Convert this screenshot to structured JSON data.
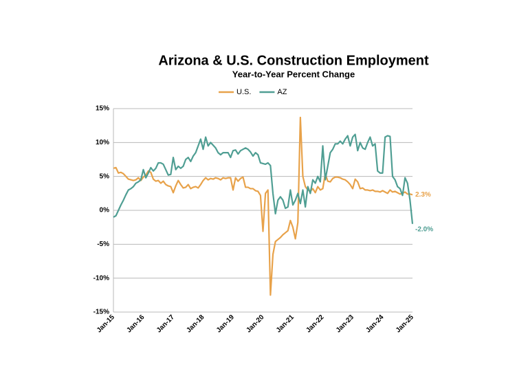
{
  "chart_data": {
    "type": "line",
    "title": "Arizona & U.S. Construction Employment",
    "subtitle": "Year-to-Year Percent Change",
    "categories": [
      "Jan-15",
      null,
      null,
      null,
      null,
      null,
      null,
      null,
      null,
      null,
      null,
      null,
      "Jan-16",
      null,
      null,
      null,
      null,
      null,
      null,
      null,
      null,
      null,
      null,
      null,
      "Jan-17",
      null,
      null,
      null,
      null,
      null,
      null,
      null,
      null,
      null,
      null,
      null,
      "Jan-18",
      null,
      null,
      null,
      null,
      null,
      null,
      null,
      null,
      null,
      null,
      null,
      "Jan-19",
      null,
      null,
      null,
      null,
      null,
      null,
      null,
      null,
      null,
      null,
      null,
      "Jan-20",
      null,
      null,
      null,
      null,
      null,
      null,
      null,
      null,
      null,
      null,
      null,
      "Jan-21",
      null,
      null,
      null,
      null,
      null,
      null,
      null,
      null,
      null,
      null,
      null,
      "Jan-22",
      null,
      null,
      null,
      null,
      null,
      null,
      null,
      null,
      null,
      null,
      null,
      "Jan-23",
      null,
      null,
      null,
      null,
      null,
      null,
      null,
      null,
      null,
      null,
      null,
      "Jan-24",
      null,
      null,
      null,
      null,
      null,
      null,
      null,
      null,
      null,
      null,
      null,
      "Jan-25"
    ],
    "series": [
      {
        "name": "U.S.",
        "color": "#e8a24a",
        "end_label": "2.3%",
        "values": [
          6.2,
          6.3,
          5.5,
          5.6,
          5.4,
          5.0,
          4.6,
          4.5,
          4.4,
          4.5,
          4.8,
          4.4,
          4.9,
          5.2,
          5.8,
          5.6,
          4.6,
          4.3,
          4.4,
          4.0,
          4.3,
          3.8,
          3.6,
          3.5,
          2.6,
          3.6,
          4.4,
          3.8,
          3.3,
          3.4,
          3.8,
          3.2,
          3.4,
          3.5,
          3.3,
          3.8,
          4.4,
          4.8,
          4.5,
          4.7,
          4.6,
          4.8,
          4.7,
          4.5,
          4.8,
          4.7,
          4.8,
          4.8,
          3.0,
          4.8,
          4.3,
          4.7,
          4.9,
          3.4,
          3.4,
          3.2,
          3.2,
          2.9,
          2.8,
          2.2,
          -3.1,
          2.5,
          3.0,
          -12.5,
          -6.5,
          -4.6,
          -4.3,
          -4.0,
          -3.6,
          -3.3,
          -3.0,
          -1.5,
          -2.5,
          -4.2,
          -1.8,
          13.7,
          5.0,
          3.5,
          3.0,
          2.8,
          3.2,
          2.6,
          3.5,
          3.0,
          3.2,
          5.4,
          4.3,
          4.2,
          4.7,
          4.9,
          4.9,
          4.8,
          4.6,
          4.5,
          4.2,
          3.8,
          3.2,
          4.6,
          4.2,
          3.2,
          3.3,
          3.0,
          3.0,
          2.9,
          3.0,
          2.8,
          2.8,
          2.7,
          2.9,
          2.7,
          2.5,
          3.0,
          2.7,
          2.8,
          2.6,
          2.4,
          2.5,
          2.7,
          2.4,
          2.4,
          2.3
        ]
      },
      {
        "name": "AZ",
        "color": "#4f9e93",
        "end_label": "-2.0%",
        "values": [
          -1.0,
          -0.8,
          0.0,
          0.8,
          1.5,
          2.3,
          3.0,
          3.2,
          3.5,
          4.0,
          4.2,
          4.5,
          6.0,
          4.8,
          5.5,
          6.3,
          5.8,
          6.2,
          7.0,
          7.0,
          6.8,
          6.0,
          5.2,
          5.3,
          7.8,
          6.0,
          6.5,
          6.2,
          6.5,
          7.5,
          7.8,
          7.2,
          8.0,
          8.5,
          9.5,
          10.5,
          9.0,
          10.8,
          9.5,
          10.0,
          9.6,
          9.2,
          8.5,
          8.2,
          8.5,
          8.5,
          8.5,
          7.8,
          8.8,
          8.9,
          8.3,
          8.8,
          9.0,
          9.2,
          9.0,
          8.6,
          8.0,
          8.5,
          8.2,
          7.0,
          6.9,
          6.8,
          7.0,
          6.6,
          2.5,
          -0.5,
          1.5,
          2.0,
          1.5,
          0.3,
          0.5,
          3.0,
          0.8,
          1.5,
          2.5,
          1.0,
          3.0,
          0.5,
          3.5,
          2.5,
          4.5,
          4.0,
          5.0,
          4.2,
          9.5,
          4.5,
          6.5,
          8.5,
          9.0,
          9.8,
          9.8,
          10.2,
          9.8,
          10.5,
          11.0,
          9.5,
          10.8,
          11.2,
          8.8,
          10.0,
          9.2,
          9.0,
          10.0,
          10.8,
          9.5,
          9.8,
          5.8,
          5.5,
          5.5,
          10.8,
          11.0,
          10.9,
          5.0,
          4.5,
          3.5,
          3.2,
          2.2,
          4.8,
          4.0,
          1.5,
          -2.0
        ]
      }
    ],
    "ylim": [
      -15,
      15
    ],
    "yticks": [
      {
        "value": -15,
        "label": "-15%"
      },
      {
        "value": -10,
        "label": "-10%"
      },
      {
        "value": -5,
        "label": "-5%"
      },
      {
        "value": 0,
        "label": "0%"
      },
      {
        "value": 5,
        "label": "5%"
      },
      {
        "value": 10,
        "label": "10%"
      },
      {
        "value": 15,
        "label": "15%"
      }
    ],
    "grid": true,
    "legend": "top"
  }
}
